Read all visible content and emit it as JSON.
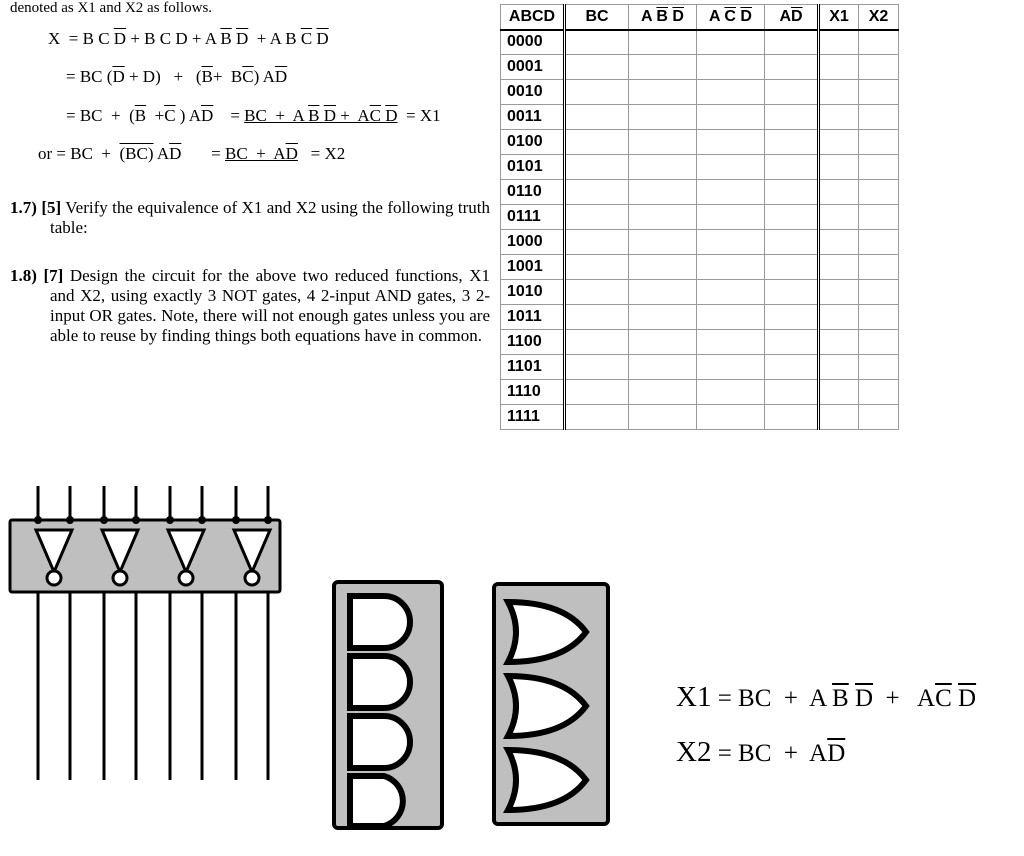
{
  "topline": "denoted as X1 and X2 as follows.",
  "deriv": {
    "r1a": "X  = B C ",
    "r1b": "+ B C D + A ",
    "r1c": "  + A B ",
    "r2a": "= BC (",
    "r2b": "+ D)    +  (",
    "r2c": "+  B",
    "r2d": ") A",
    "r3a": "= BC  +  (",
    "r3b": "  +",
    "r3c": " ) A",
    "r3eq": "= ",
    "r3x": " + A ",
    "r3y": " +  A",
    "r3z": " ",
    "r3end": "  = X1",
    "r4a": "or = BC  +  ",
    "r4paren": "(BC)",
    "r4ad": " A",
    "r4eq": "= ",
    "r4bc": "BC  +  A",
    "r4end": "   = X2"
  },
  "q17": {
    "head": "1.7) [5]",
    "body": " Verify the equivalence of X1 and X2 using the following truth table:"
  },
  "q18": {
    "head": "1.8) [7]",
    "body": " Design the circuit for the above two reduced functions, X1 and X2, using exactly 3 NOT gates, 4 2-input AND gates, 3 2-input OR gates.  Note, there will not enough gates unless you are able to reuse by finding things both equations have in common."
  },
  "table": {
    "headers": [
      "ABCD",
      "BC",
      "A B̅ D̅",
      "A C̅ D̅",
      "AD̅",
      "X1",
      "X2"
    ],
    "rows": [
      "0000",
      "0001",
      "0010",
      "0011",
      "0100",
      "0101",
      "0110",
      "0111",
      "1000",
      "1001",
      "1010",
      "1011",
      "1100",
      "1101",
      "1110",
      "1111"
    ]
  },
  "eq": {
    "x1a": "X1",
    "x1b": " = BC  +  A ",
    "x1c": "  +   A",
    "x1d": " ",
    "x2a": "X2",
    "x2b": " = BC  +  A"
  },
  "colors": {
    "grey": "#bfbfbf",
    "border": "#000000"
  }
}
